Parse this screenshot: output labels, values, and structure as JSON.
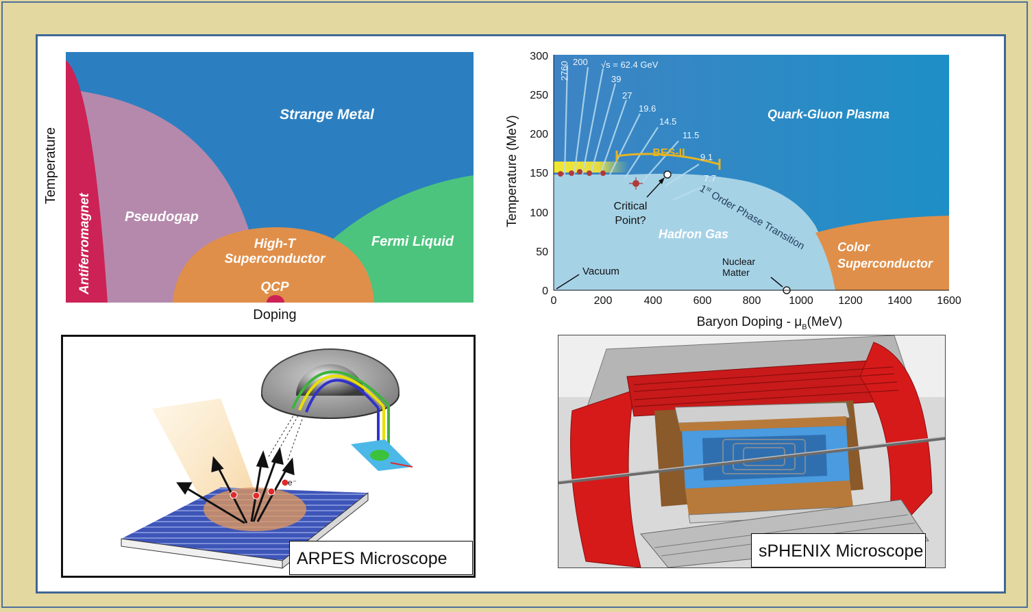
{
  "left_diagram": {
    "y_label": "Temperature",
    "x_label": "Doping",
    "regions": {
      "antiferromagnet": "Antiferromagnet",
      "pseudogap": "Pseudogap",
      "strange_metal": "Strange Metal",
      "superconductor_line1": "High-T",
      "superconductor_line2": "Superconductor",
      "qcp": "QCP",
      "fermi_liquid": "Fermi Liquid"
    },
    "colors": {
      "strange_metal": "#2b7fc0",
      "antiferromagnet": "#cc2255",
      "pseudogap": "#b589ac",
      "superconductor": "#e08f4a",
      "fermi_liquid": "#4cc47e",
      "qcp_dot": "#cc2255"
    }
  },
  "right_diagram": {
    "y_label": "Temperature (MeV)",
    "x_label_main": "Baryon Doping - μ",
    "x_label_sub": "B",
    "x_label_unit": "(MeV)",
    "y_ticks": [
      "0",
      "50",
      "100",
      "150",
      "200",
      "250",
      "300"
    ],
    "x_ticks": [
      "0",
      "200",
      "400",
      "600",
      "800",
      "1000",
      "1200",
      "1400",
      "1600"
    ],
    "energies": [
      "2760",
      "200",
      "√s = 62.4 GeV",
      "39",
      "27",
      "19.6",
      "14.5",
      "11.5",
      "9.1",
      "7.7"
    ],
    "bes_label": "BES-II",
    "qgp_label": "Quark-Gluon Plasma",
    "hadron_gas_label": "Hadron Gas",
    "phase_transition_prefix": "1",
    "phase_transition_sup": "st",
    "phase_transition_rest": " Order Phase Transition",
    "critical_point_line1": "Critical",
    "critical_point_line2": "Point?",
    "vacuum_label": "Vacuum",
    "nuclear_matter_line1": "Nuclear",
    "nuclear_matter_line2": "Matter",
    "color_sc_line1": "Color",
    "color_sc_line2": "Superconductor",
    "colors": {
      "qgp": "#2a7ab8",
      "hadron_gas": "#a6d2e6",
      "color_sc": "#e08f4a",
      "bes": "#e6b422",
      "data_points": "#b03a3a"
    }
  },
  "arpes_caption": "ARPES Microscope",
  "sphenix_caption": "sPHENIX Microscope"
}
